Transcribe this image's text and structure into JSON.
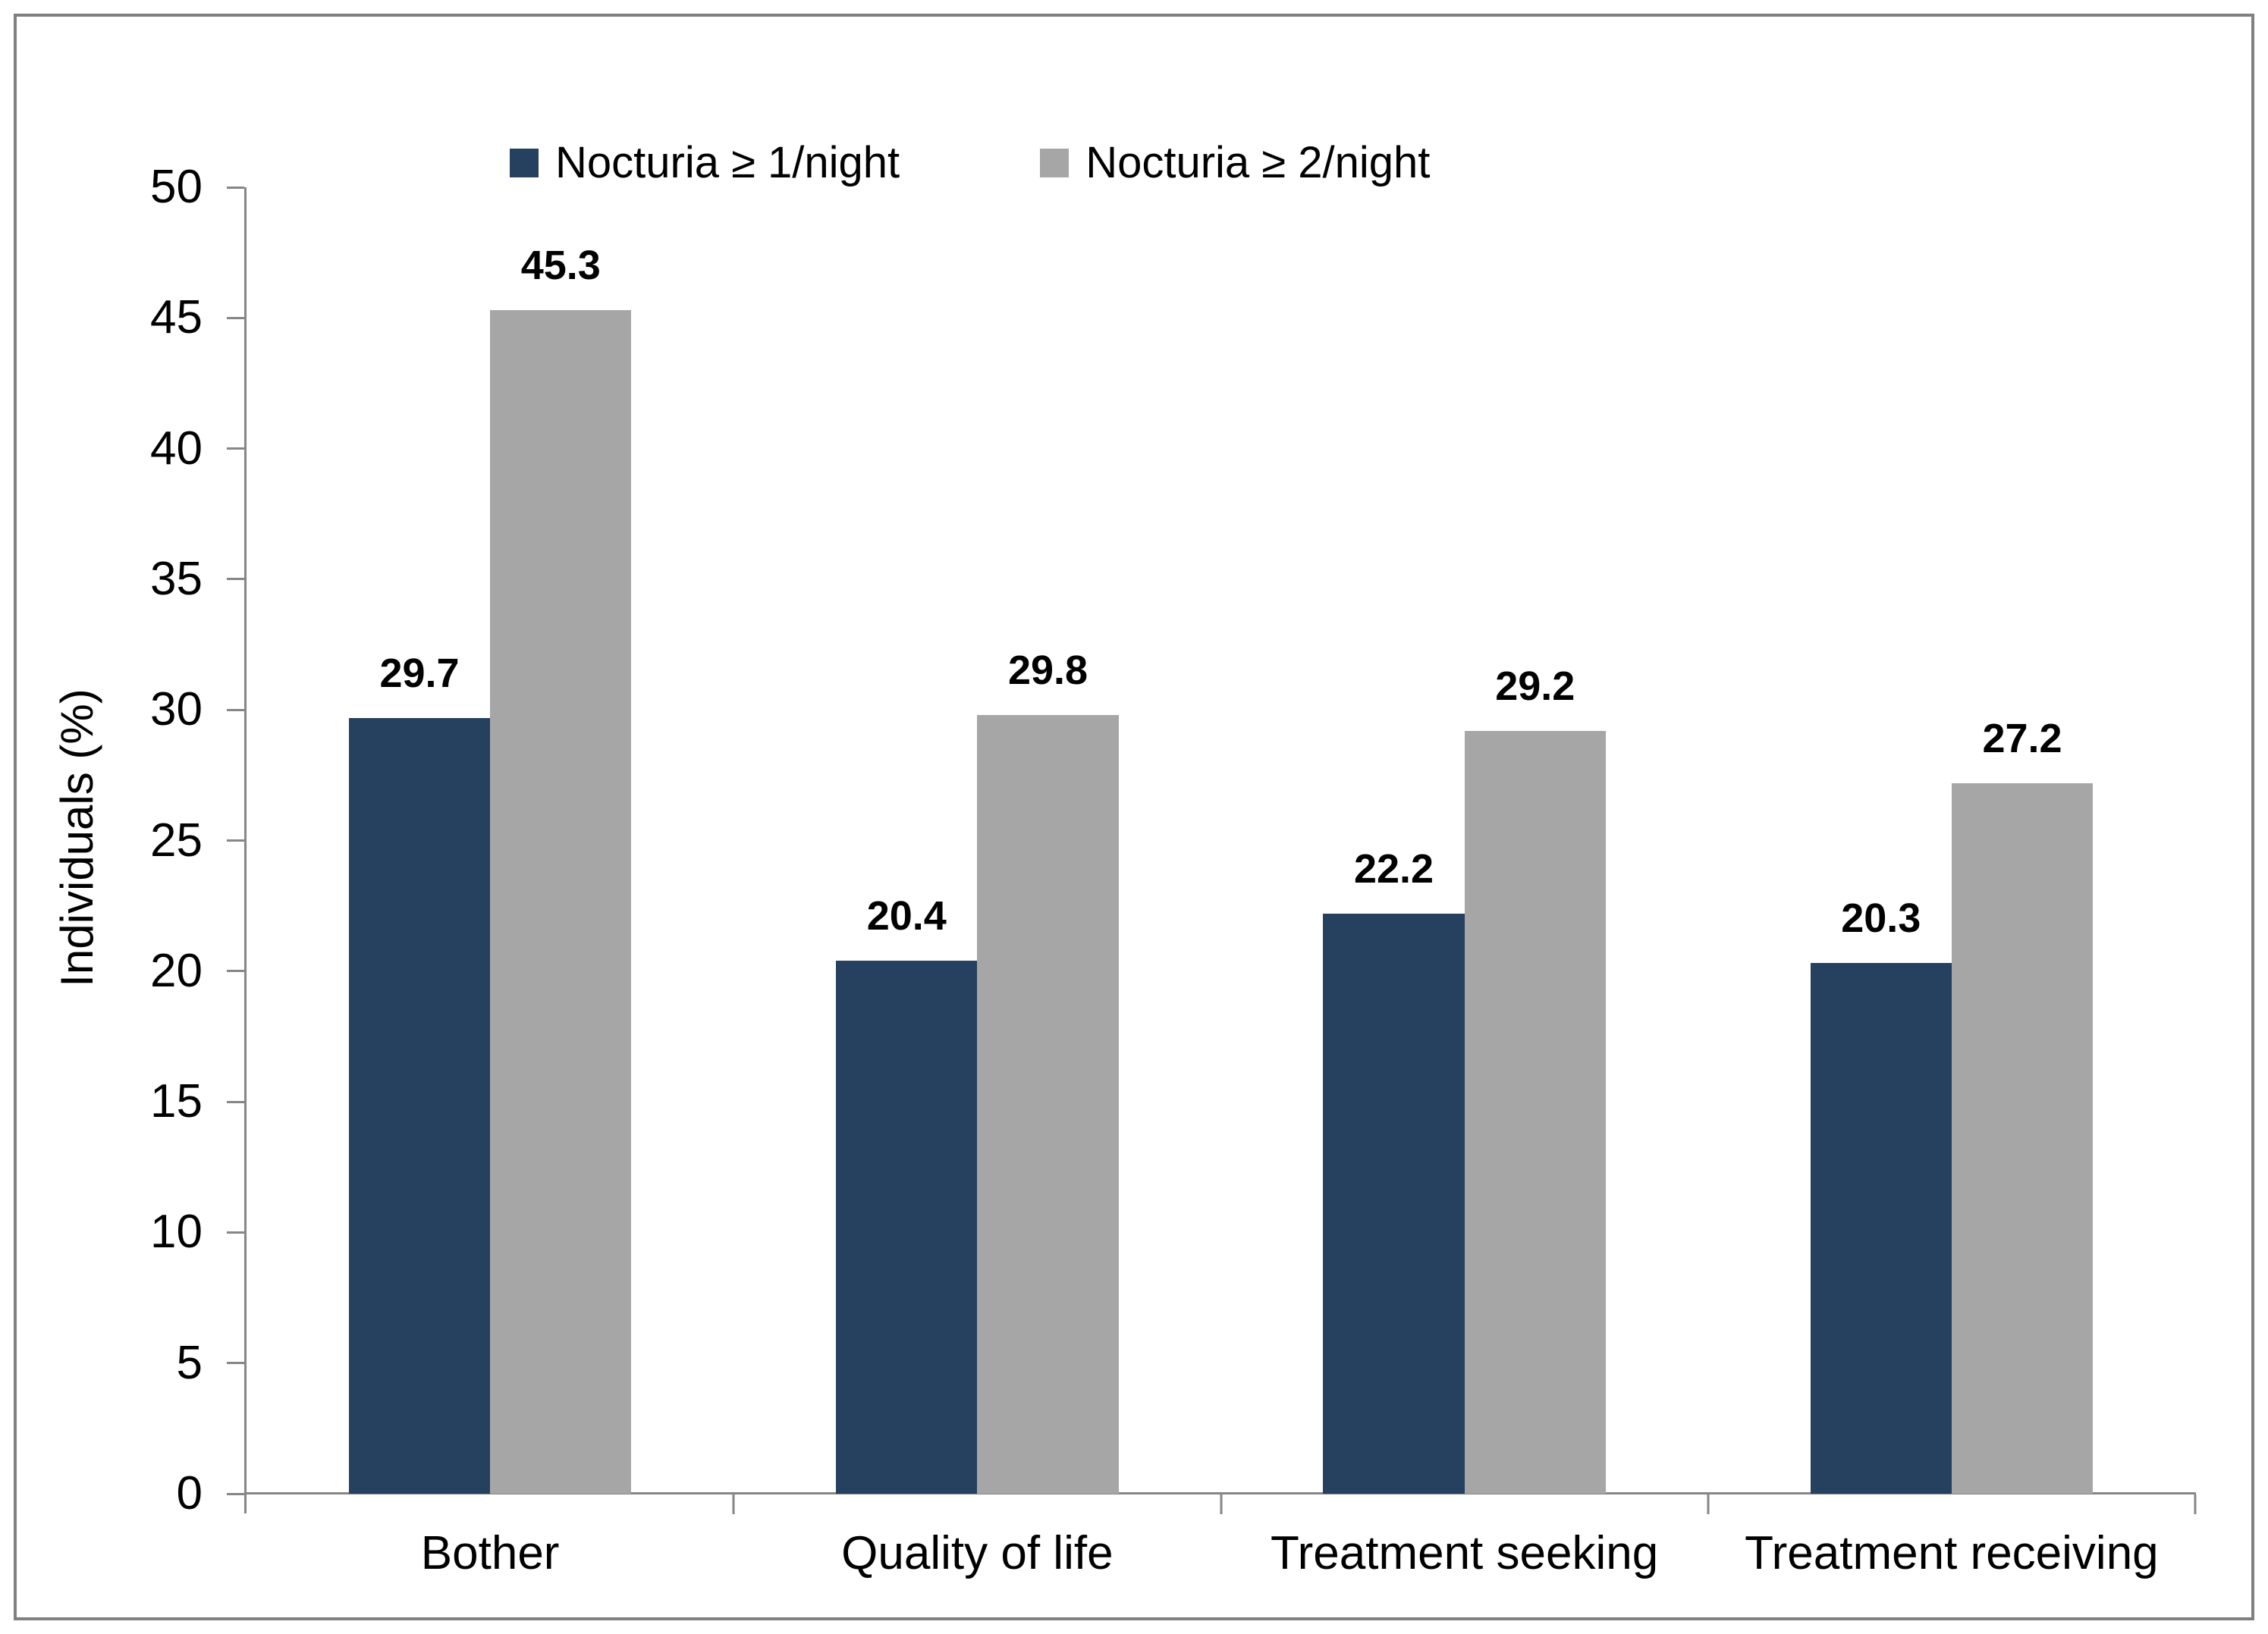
{
  "chart_data": {
    "type": "bar",
    "categories": [
      "Bother",
      "Quality of life",
      "Treatment seeking",
      "Treatment receiving"
    ],
    "series": [
      {
        "name": "Nocturia ≥ 1/night",
        "color": "#26405F",
        "values": [
          29.7,
          20.4,
          22.2,
          20.3
        ]
      },
      {
        "name": "Nocturia ≥ 2/night",
        "color": "#A6A6A6",
        "values": [
          45.3,
          29.8,
          29.2,
          27.2
        ]
      }
    ],
    "title": "",
    "xlabel": "",
    "ylabel": "Individuals (%)",
    "ylim": [
      0,
      50
    ],
    "yticks": [
      0,
      5,
      10,
      15,
      20,
      25,
      30,
      35,
      40,
      45,
      50
    ],
    "grid": false,
    "legend_position": "top-inside",
    "colors": {
      "axis": "#868686",
      "frame_border": "#808080",
      "value_label_text": "#000000",
      "background": "#FFFFFF"
    }
  }
}
